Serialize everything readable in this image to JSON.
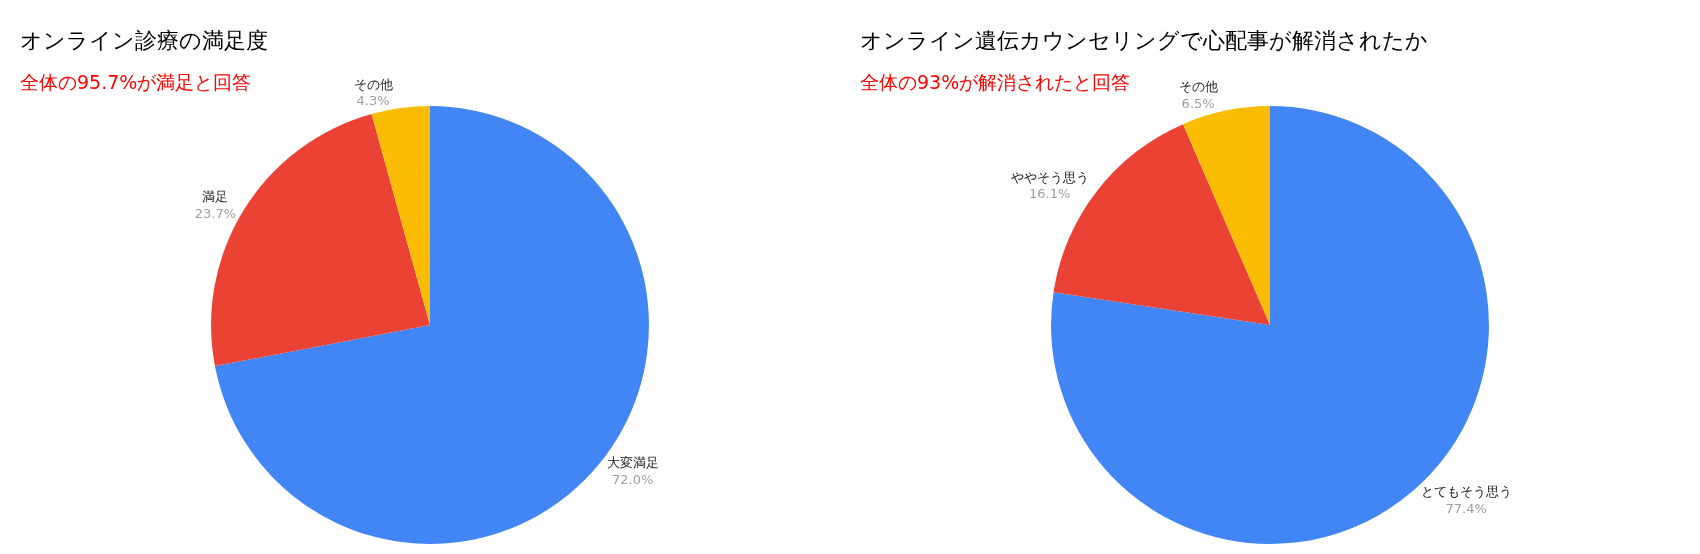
{
  "chart_data": [
    {
      "type": "pie",
      "title": "オンライン診療の満足度",
      "subtitle": "全体の95.7%が満足と回答",
      "categories": [
        "大変満足",
        "満足",
        "その他"
      ],
      "values": [
        72.0,
        23.7,
        4.3
      ],
      "value_labels": [
        "72.0%",
        "23.7%",
        "4.3%"
      ],
      "colors": [
        "#4285f4",
        "#ea4335",
        "#fbbc04"
      ],
      "legend": false
    },
    {
      "type": "pie",
      "title": "オンライン遺伝カウンセリングで心配事が解消されたか",
      "subtitle": "全体の93%が解消されたと回答",
      "categories": [
        "とてもそう思う",
        "ややそう思う",
        "その他"
      ],
      "values": [
        77.4,
        16.1,
        6.5
      ],
      "value_labels": [
        "77.4%",
        "16.1%",
        "6.5%"
      ],
      "colors": [
        "#4285f4",
        "#ea4335",
        "#fbbc04"
      ],
      "legend": false
    }
  ]
}
